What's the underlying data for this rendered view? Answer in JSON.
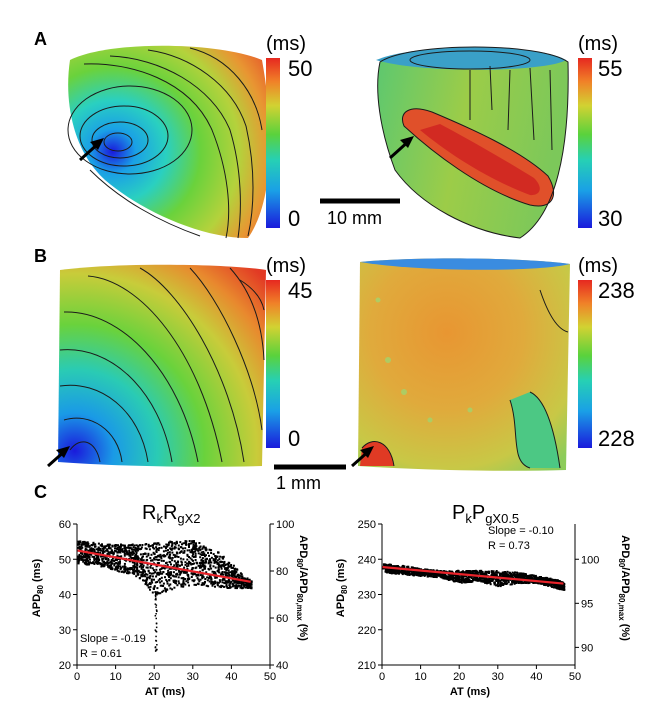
{
  "panel_labels": [
    "A",
    "B",
    "C"
  ],
  "panel_a": {
    "left_colorbar": {
      "unit": "(ms)",
      "max": "50",
      "min": "0"
    },
    "right_colorbar": {
      "unit": "(ms)",
      "max": "55",
      "min": "30"
    },
    "scale_bar": "10 mm"
  },
  "panel_b": {
    "left_colorbar": {
      "unit": "(ms)",
      "max": "45",
      "min": "0"
    },
    "right_colorbar": {
      "unit": "(ms)",
      "max": "238",
      "min": "228"
    },
    "scale_bar": "1 mm"
  },
  "colors": {
    "regression_line": "#e8232a",
    "points": "#000000"
  },
  "chart_data": [
    {
      "type": "scatter",
      "title_main": "R",
      "title_sub1": "k",
      "title_main2": "R",
      "title_sub2": "gX2",
      "xlabel": "AT (ms)",
      "ylabel_main": "APD",
      "ylabel_sub": "80",
      "ylabel_unit": " (ms)",
      "y2label_main": "APD",
      "y2label_sub1": "80",
      "y2label_mid": "/APD",
      "y2label_sub2": "80,max",
      "y2label_unit": " (%)",
      "xlim": [
        0,
        50
      ],
      "ylim": [
        20,
        60
      ],
      "y2lim": [
        40,
        100
      ],
      "xticks": [
        "0",
        "10",
        "20",
        "30",
        "40",
        "50"
      ],
      "yticks": [
        "20",
        "30",
        "40",
        "50",
        "60"
      ],
      "y2ticks": [
        "40",
        "60",
        "80",
        "100"
      ],
      "slope_text": "Slope = -0.19",
      "r_text": "R = 0.61",
      "regression": {
        "x": [
          0,
          45
        ],
        "y": [
          52.5,
          43.6
        ]
      },
      "scatter_envelope": {
        "x": [
          0,
          5,
          10,
          15,
          20,
          25,
          30,
          35,
          40,
          45
        ],
        "upper": [
          55.5,
          55,
          54.5,
          54.5,
          55,
          55.5,
          55.5,
          53.5,
          49,
          44
        ],
        "lower": [
          49,
          48.5,
          47,
          45.5,
          40,
          42,
          43,
          42.5,
          42,
          42
        ]
      }
    },
    {
      "type": "scatter",
      "title_main": "P",
      "title_sub1": "k",
      "title_main2": "P",
      "title_sub2": "gX0.5",
      "xlabel": "AT (ms)",
      "ylabel_main": "APD",
      "ylabel_sub": "80",
      "ylabel_unit": " (ms)",
      "y2label_main": "APD",
      "y2label_sub1": "80",
      "y2label_mid": "/APD",
      "y2label_sub2": "80,max",
      "y2label_unit": " (%)",
      "xlim": [
        0,
        50
      ],
      "ylim": [
        210,
        250
      ],
      "y2lim": [
        88,
        104
      ],
      "xticks": [
        "0",
        "10",
        "20",
        "30",
        "40",
        "50"
      ],
      "yticks": [
        "210",
        "220",
        "230",
        "240",
        "250"
      ],
      "y2ticks": [
        "90",
        "95",
        "100"
      ],
      "slope_text": "Slope = -0.10",
      "r_text": "R = 0.73",
      "regression": {
        "x": [
          0,
          47
        ],
        "y": [
          237.8,
          233.1
        ]
      },
      "scatter_envelope": {
        "x": [
          0,
          5,
          10,
          15,
          20,
          25,
          30,
          35,
          40,
          45,
          47
        ],
        "upper": [
          239,
          238.5,
          237.5,
          237,
          237,
          237,
          237,
          236.5,
          235.5,
          234.5,
          233.5
        ],
        "lower": [
          236.5,
          236,
          235.5,
          235,
          233.5,
          234,
          232.5,
          233.5,
          233.5,
          232,
          231.5
        ]
      }
    }
  ]
}
